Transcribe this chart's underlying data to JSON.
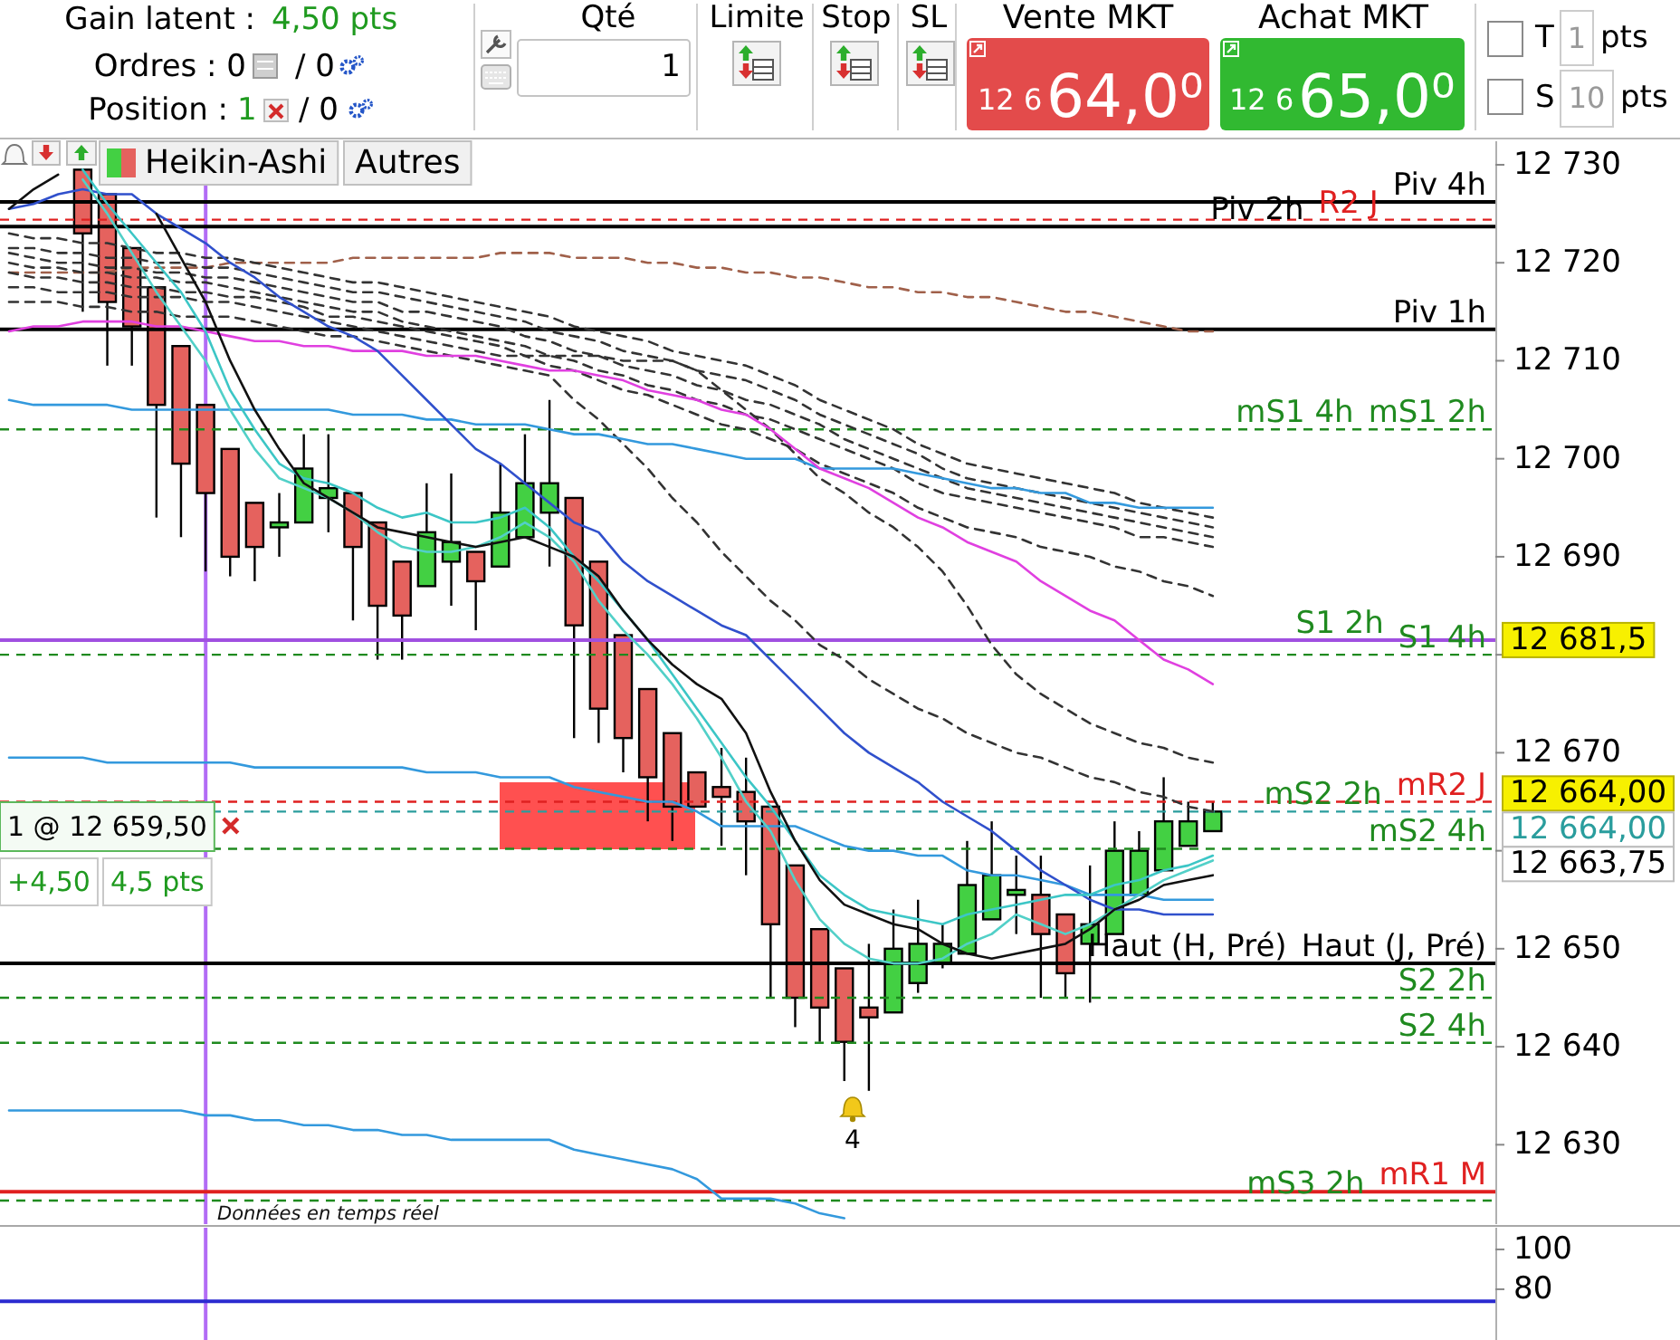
{
  "chart_data": [
    {
      "type": "other",
      "annotations": [
        "Gain latent :",
        "4,50 pts",
        "Ordres : 0",
        "/ 0",
        "Position :",
        "1",
        "/ 0",
        "Qté",
        "1",
        "Limite",
        "Stop",
        "SL",
        "Vente MKT",
        "12 6",
        "64,0⁰",
        "Achat MKT",
        "12 6",
        "65,0⁰",
        "T",
        "1",
        "pts",
        "S",
        "10",
        "pts"
      ]
    },
    {
      "type": "candlestick",
      "categories": [
        null,
        null,
        null,
        null,
        null,
        null,
        null,
        null,
        null,
        null,
        null,
        null,
        null,
        null,
        null,
        null,
        null,
        null,
        null,
        null,
        null,
        null,
        null,
        null,
        null,
        null,
        null,
        null,
        null,
        null,
        null,
        null,
        null,
        null,
        null,
        null,
        null,
        null,
        null,
        null,
        null,
        null,
        null,
        null,
        null,
        null,
        null,
        null,
        null,
        null,
        null,
        null,
        null,
        null,
        null,
        null,
        null,
        null,
        null,
        null,
        null
      ],
      "ohlc": [
        null,
        null,
        null,
        [
          12729.5,
          12729.5,
          12715,
          12723
        ],
        [
          12727,
          12727,
          12709.5,
          12716
        ],
        [
          12721.5,
          12721.5,
          12709.5,
          12713.5
        ],
        [
          12717.5,
          12717.5,
          12694,
          12705.5
        ],
        [
          12711.5,
          12711.5,
          12692,
          12699.5
        ],
        [
          12705.5,
          12705.5,
          12688.5,
          12696.5
        ],
        [
          12701,
          12701,
          12688,
          12690
        ],
        [
          12695.5,
          12695.5,
          12687.5,
          12691
        ],
        [
          12693,
          12696.5,
          12690,
          12693.5
        ],
        [
          12693.5,
          12702.5,
          12693.5,
          12699
        ],
        [
          12696,
          12702.5,
          12692.5,
          12697
        ],
        [
          12696.5,
          12696.5,
          12683.5,
          12691
        ],
        [
          12693.5,
          12693.5,
          12679.5,
          12685
        ],
        [
          12689.5,
          12689.5,
          12679.5,
          12684
        ],
        [
          12687,
          12697.5,
          12687,
          12692.5
        ],
        [
          12689.5,
          12698.5,
          12685,
          12691.5
        ],
        [
          12690.5,
          12690.5,
          12682.5,
          12687.5
        ],
        [
          12689,
          12699.5,
          12689,
          12694.5
        ],
        [
          12692,
          12702.5,
          12692,
          12697.5
        ],
        [
          12694.5,
          12706,
          12689,
          12697.5
        ],
        [
          12696,
          12696,
          12671.5,
          12683
        ],
        [
          12689.5,
          12689.5,
          12671,
          12674.5
        ],
        [
          12682,
          12682,
          12668,
          12671.5
        ],
        [
          12676.5,
          12676.5,
          12663,
          12667.5
        ],
        [
          12672,
          12672,
          12661,
          12664.5
        ],
        [
          12668,
          12668,
          12664.5,
          12664.5
        ],
        [
          12666.5,
          12670.5,
          12660.5,
          12665.5
        ],
        [
          12666,
          12669.5,
          12657.5,
          12663
        ],
        [
          12664.5,
          12664.5,
          12645,
          12652.5
        ],
        [
          12658.5,
          12658.5,
          12642,
          12645
        ],
        [
          12652,
          12652,
          12640.5,
          12644
        ],
        [
          12648,
          12648,
          12636.5,
          12640.5
        ],
        [
          12644,
          12650.5,
          12635.5,
          12643
        ],
        [
          12643.5,
          12654,
          12643.5,
          12650
        ],
        [
          12646.5,
          12655,
          12645.5,
          12650.5
        ],
        [
          12648.5,
          12652.5,
          12648,
          12650.5
        ],
        [
          12649.5,
          12661,
          12649.5,
          12656.5
        ],
        [
          12653,
          12663,
          12653,
          12657.5
        ],
        [
          12655.5,
          12659.5,
          12651.5,
          12656
        ],
        [
          12655.5,
          12659.5,
          12645,
          12651.5
        ],
        [
          12653.5,
          12653.5,
          12645,
          12647.5
        ],
        [
          12650.5,
          12658.5,
          12644.5,
          12652.5
        ],
        [
          12651.5,
          12663,
          12651.5,
          12660
        ],
        [
          12655.5,
          12662,
          12655.5,
          12660
        ],
        [
          12658,
          12667.5,
          12658,
          12663
        ],
        [
          12660.5,
          12665,
          12660.5,
          12663
        ],
        [
          12662,
          12665,
          12662,
          12664
        ],
        null,
        null,
        null,
        null,
        null,
        null,
        null,
        null,
        null,
        null,
        null
      ],
      "colors": [
        null,
        null,
        null,
        "#e5625e",
        "#e5625e",
        "#e5625e",
        "#e5625e",
        "#e5625e",
        "#e5625e",
        "#e5625e",
        "#e5625e",
        "#43d043",
        "#43d043",
        "#43d043",
        "#e5625e",
        "#e5625e",
        "#e5625e",
        "#43d043",
        "#43d043",
        "#e5625e",
        "#43d043",
        "#43d043",
        "#43d043",
        "#e5625e",
        "#e5625e",
        "#e5625e",
        "#e5625e",
        "#e5625e",
        "#e5625e",
        "#e5625e",
        "#e5625e",
        "#e5625e",
        "#e5625e",
        "#e5625e",
        "#e5625e",
        "#e5625e",
        "#43d043",
        "#43d043",
        "#43d043",
        "#43d043",
        "#43d043",
        "#43d043",
        "#e5625e",
        "#e5625e",
        "#43d043",
        "#43d043",
        "#43d043",
        "#43d043",
        "#43d043",
        "#43d043",
        null,
        null,
        null,
        null,
        null,
        null,
        null,
        null,
        null,
        null,
        null
      ],
      "series": [
        {
          "type": "line",
          "color": "#a0604a",
          "line_style": "dashed",
          "values": [
            12719,
            12719,
            12719,
            12719,
            12719,
            12719.5,
            12719.5,
            12719.5,
            12719.5,
            12720,
            12720,
            12720,
            12720,
            12720,
            12720.5,
            12720.5,
            12720.5,
            12720.5,
            12720.5,
            12720.5,
            12721,
            12721,
            12721,
            12720.5,
            12720.5,
            12720.5,
            12720,
            12720,
            12719.5,
            12719.5,
            12719,
            12719,
            12718.5,
            12718.5,
            12718,
            12717.5,
            12717.5,
            12717,
            12717,
            12716.5,
            12716.5,
            12716,
            12715.5,
            12715,
            12715,
            12714.5,
            12714,
            12713.5,
            12713,
            12713,
            null,
            null,
            null,
            null,
            null,
            null,
            null,
            null,
            null,
            null,
            null
          ]
        },
        {
          "type": "line",
          "color": "#333333",
          "line_style": "dashed",
          "values": [
            12723,
            12722.5,
            12722.5,
            12722,
            12722,
            12721.5,
            12721,
            12721,
            12720.5,
            12720.5,
            12720,
            12719.5,
            12719,
            12718.5,
            12718,
            12718,
            12717.5,
            12717,
            12716.5,
            12716,
            12715.5,
            12715,
            12714.5,
            12713.5,
            12713,
            12712.5,
            12712,
            12711,
            12710.5,
            12710,
            12709.5,
            12708.5,
            12707.5,
            12706,
            12705,
            12704,
            12703,
            12701.5,
            12700.5,
            12699.5,
            12699,
            12698.5,
            12698,
            12697.5,
            12697,
            12696.5,
            12695.5,
            12695,
            12694.5,
            12694,
            null,
            null,
            null,
            null,
            null,
            null,
            null,
            null,
            null,
            null,
            null
          ]
        },
        {
          "type": "line",
          "color": "#333333",
          "line_style": "dashed",
          "values": [
            12721.5,
            12721.5,
            12721,
            12721,
            12720.5,
            12720.5,
            12720,
            12720,
            12719.5,
            12719.5,
            12719,
            12718.5,
            12718,
            12717.5,
            12717,
            12717,
            12716.5,
            12716,
            12715.5,
            12715,
            12714.5,
            12714,
            12713,
            12712.5,
            12712,
            12711,
            12710.5,
            12710,
            12709,
            12708.5,
            12708,
            12707,
            12706,
            12704.5,
            12703.5,
            12702.5,
            12701.5,
            12700.5,
            12699,
            12698,
            12697.5,
            12697,
            12696.5,
            12696,
            12695.5,
            12695,
            12694.5,
            12694,
            12693.5,
            12693,
            null,
            null,
            null,
            null,
            null,
            null,
            null,
            null,
            null,
            null,
            null
          ]
        },
        {
          "type": "line",
          "color": "#333333",
          "line_style": "dashed",
          "values": [
            12721,
            12720.5,
            12720,
            12720,
            12719.5,
            12719.5,
            12719,
            12719,
            12718.5,
            12718.5,
            12718,
            12717.5,
            12717,
            12716.5,
            12716,
            12716,
            12715,
            12715,
            12714.5,
            12714,
            12713.5,
            12712.5,
            12712,
            12711,
            12710.5,
            12709.5,
            12709,
            12708.5,
            12707.5,
            12707,
            12706,
            12705.5,
            12704.5,
            12703.5,
            12702,
            12701,
            12700,
            12699,
            12698,
            12697,
            12696.5,
            12696,
            12695.5,
            12695,
            12694.5,
            12694,
            12693.5,
            12693,
            12692.5,
            12692,
            null,
            null,
            null,
            null,
            null,
            null,
            null,
            null,
            null,
            null,
            null
          ]
        },
        {
          "type": "line",
          "color": "#333333",
          "line_style": "dashed",
          "values": [
            12720,
            12719.5,
            12719.5,
            12719,
            12719,
            12718.5,
            12718.5,
            12718,
            12718,
            12717.5,
            12717,
            12716.5,
            12716,
            12715.5,
            12715,
            12715,
            12714,
            12713.5,
            12713,
            12712.5,
            12712,
            12711.5,
            12710.5,
            12710,
            12709,
            12708.5,
            12707.5,
            12707,
            12706,
            12705.5,
            12704.5,
            12704,
            12703,
            12702,
            12701,
            12700,
            12699,
            12697.5,
            12696.5,
            12696,
            12695.5,
            12695,
            12694.5,
            12694,
            12693.5,
            12693,
            12692,
            12692,
            12691.5,
            12691,
            null,
            null,
            null,
            null,
            null,
            null,
            null,
            null,
            null,
            null,
            null
          ]
        },
        {
          "type": "line",
          "color": "#333333",
          "line_style": "dashed",
          "values": [
            12719,
            12718.5,
            12718.5,
            12718,
            12718,
            12717.5,
            12717.5,
            12717,
            12717,
            12716.5,
            12716.5,
            12716,
            12715.5,
            12714.5,
            12714.5,
            12714,
            12713.5,
            12713,
            12712.5,
            12712,
            12711.5,
            12710.5,
            12709.5,
            12709,
            12708,
            12707,
            12706.5,
            12705.5,
            12704.5,
            12703.5,
            12703,
            12702,
            12701,
            12699.5,
            12698.5,
            12697.5,
            12696.5,
            12695,
            12694,
            12693,
            12692.5,
            12692,
            12691,
            12690.5,
            12690,
            12689,
            12688.5,
            12687.5,
            12687,
            12686,
            null,
            null,
            null,
            null,
            null,
            null,
            null,
            null,
            null,
            null,
            null
          ]
        },
        {
          "type": "line",
          "color": "#333333",
          "line_style": "dashed",
          "values": [
            12717.5,
            12717.5,
            12717,
            12717,
            12717,
            12716.5,
            12716.5,
            12716.5,
            12716,
            12716,
            12715.5,
            12715,
            12714.5,
            12714,
            12713.5,
            12713,
            12712.5,
            12712,
            12711.5,
            12711,
            12710.5,
            12710.5,
            12710.5,
            12710.5,
            12710.5,
            12710,
            12710,
            12710,
            12709,
            12707,
            12705,
            12703,
            12700.5,
            12698,
            12696.5,
            12694.5,
            12693,
            12691,
            12688.5,
            12685,
            12681,
            12678,
            12676,
            12674.5,
            12673,
            12672,
            12671,
            12670.5,
            12669.5,
            12669,
            null,
            null,
            null,
            null,
            null,
            null,
            null,
            null,
            null,
            null,
            null
          ]
        },
        {
          "type": "line",
          "color": "#333333",
          "line_style": "dashed",
          "values": [
            12716,
            12716,
            12716,
            12715.5,
            12715.5,
            12715,
            12715,
            12714.5,
            12714.5,
            12714.5,
            12714,
            12713.5,
            12713,
            12712.5,
            12712.5,
            12712,
            12711.5,
            12711,
            12710.5,
            12710,
            12709.5,
            12709,
            12708.5,
            12706,
            12704,
            12701.5,
            12699,
            12696,
            12693.5,
            12690.5,
            12688,
            12685.5,
            12683.5,
            12681,
            12679.5,
            12677.5,
            12676,
            12674.5,
            12673.5,
            12672,
            12671,
            12670,
            12669.5,
            12668.5,
            12667.5,
            12667,
            12666,
            12665.5,
            12664.5,
            12664,
            null,
            null,
            null,
            null,
            null,
            null,
            null,
            null,
            null,
            null,
            null
          ]
        },
        {
          "type": "line",
          "color": "#3399dd",
          "values": [
            12706,
            12705.5,
            12705.5,
            12705.5,
            12705.5,
            12705,
            12705,
            12705,
            12705,
            12705,
            12705,
            12705,
            12705,
            12705,
            12704.5,
            12704.5,
            12704.5,
            12704,
            12704,
            12703.5,
            12703.5,
            12703.5,
            12703,
            12702.5,
            12702.5,
            12702,
            12701.5,
            12701.5,
            12701,
            12700.5,
            12700,
            12700,
            12700,
            12699,
            12699,
            12699,
            12699,
            12698.5,
            12698,
            12697.5,
            12697,
            12697,
            12696.5,
            12696.5,
            12695.5,
            12695.5,
            12695,
            12695,
            12695,
            12695,
            null,
            null,
            null,
            null,
            null,
            null,
            null,
            null,
            null,
            null,
            null
          ]
        },
        {
          "type": "line",
          "color": "#3399dd",
          "values": [
            12669.5,
            12669.5,
            12669.5,
            12669.5,
            12669,
            12669,
            12669,
            12669,
            12669,
            12669,
            12668.5,
            12668.5,
            12668.5,
            12668.5,
            12668.5,
            12668.5,
            12668.5,
            12668,
            12668,
            12668,
            12667.5,
            12667.5,
            12667.5,
            12666.5,
            12666,
            12665.5,
            12665,
            12665,
            12664,
            12662.5,
            12662.5,
            12662.5,
            12662.5,
            12661.5,
            12660.5,
            12660,
            12660,
            12659.5,
            12659.5,
            12658,
            12657.5,
            12657.5,
            12657,
            12656.5,
            12655.5,
            12655.5,
            12655.5,
            12655,
            12655,
            12655,
            null,
            null,
            null,
            null,
            null,
            null,
            null,
            null,
            null,
            null,
            null
          ]
        },
        {
          "type": "line",
          "color": "#3399dd",
          "values": [
            12633.5,
            12633.5,
            12633.5,
            12633.5,
            12633.5,
            12633.5,
            12633.5,
            12633.5,
            12633,
            12633,
            12632.5,
            12632.5,
            12632,
            12632,
            12631.5,
            12631.5,
            12631,
            12631,
            12630.5,
            12630.5,
            12630.5,
            12630.5,
            12630.5,
            12629.5,
            12629,
            12628.5,
            12628,
            12627.5,
            12626.5,
            12624.5,
            12624.5,
            12624.5,
            12624,
            12623,
            12622.5,
            null,
            null,
            null,
            null,
            null,
            null,
            null,
            null,
            null,
            null,
            null,
            null,
            null,
            null,
            null,
            null,
            null,
            null,
            null,
            null,
            null,
            null,
            null,
            null,
            null,
            null
          ]
        },
        {
          "type": "line",
          "color": "#e040e0",
          "values": [
            12713,
            12713.5,
            12713.5,
            12714,
            12714,
            12714,
            12713.5,
            12713.5,
            12713,
            12712.5,
            12712,
            12712,
            12711.5,
            12711.5,
            12711,
            12711,
            12711,
            12710.5,
            12710.5,
            12710.5,
            12710,
            12709.5,
            12709,
            12709,
            12708.5,
            12708,
            12707,
            12706.5,
            12706,
            12705,
            12704.5,
            12703,
            12701,
            12699,
            12698,
            12697,
            12695.5,
            12694,
            12693,
            12691.5,
            12690.5,
            12689.5,
            12687.5,
            12686,
            12684.5,
            12683.5,
            12681.5,
            12679.5,
            12678.5,
            12677,
            null,
            null,
            null,
            null,
            null,
            null,
            null,
            null,
            null,
            null,
            null
          ]
        },
        {
          "type": "line",
          "color": "#3050cc",
          "values": [
            12725.5,
            12726,
            12727,
            12727.5,
            12727,
            12727,
            12725,
            12723.5,
            12722,
            12720,
            12718.5,
            12716.5,
            12715,
            12713.5,
            12712.5,
            12711,
            12708.5,
            12706,
            12703.5,
            12701,
            12699.5,
            12697.5,
            12695.5,
            12693.5,
            12692.5,
            12689.5,
            12687.5,
            12686,
            12684.5,
            12683,
            12682,
            12679.5,
            12677,
            12674.5,
            12672,
            12670,
            12668.5,
            12667,
            12665,
            12663.5,
            12662,
            12660,
            12658,
            12656.5,
            12655,
            12654,
            12654,
            12653.5,
            12653.5,
            12653.5,
            null,
            null,
            null,
            null,
            null,
            null,
            null,
            null,
            null,
            null,
            null
          ]
        },
        {
          "type": "line",
          "color": "#3cc6c6",
          "values": [
            null,
            null,
            null,
            12729.5,
            12726,
            12723,
            12720,
            12717,
            12713,
            12707,
            12703,
            12699.5,
            12698,
            12697.5,
            12696.5,
            12695,
            12694,
            12694.5,
            12693.5,
            12693.5,
            12694,
            12695,
            12693,
            12690,
            12687.5,
            12684.5,
            12681.5,
            12678,
            12674.5,
            12671,
            12667.5,
            12664.5,
            12661,
            12657.5,
            12655.5,
            12654,
            12653.5,
            12653,
            12652.5,
            12653.5,
            12654,
            12654.5,
            12655,
            12655.5,
            12655.5,
            12656.5,
            12657,
            12658,
            12658.5,
            12659.5,
            null,
            null,
            null,
            null,
            null,
            null,
            null,
            null,
            null,
            null,
            null
          ]
        },
        {
          "type": "line",
          "color": "#52d0c8",
          "values": [
            null,
            null,
            null,
            12728.5,
            12725,
            12721,
            12717,
            12713.5,
            12710,
            12705,
            12701,
            12698,
            12697,
            12696,
            12694.5,
            12692.5,
            12691,
            12690.5,
            12690.5,
            12691,
            12692,
            12693.5,
            12692,
            12689.5,
            12685.5,
            12682.5,
            12680,
            12677,
            12673.5,
            12669.5,
            12665,
            12662,
            12657,
            12653,
            12650.5,
            12649,
            12648.5,
            12648.5,
            12649,
            12650.5,
            12651.5,
            12653.5,
            12652.5,
            12651.5,
            12652.5,
            12654,
            12655.5,
            12657,
            12658,
            12659,
            null,
            null,
            null,
            null,
            null,
            null,
            null,
            null,
            null,
            null,
            null
          ]
        },
        {
          "type": "line",
          "color": "#111111",
          "values": [
            12725.5,
            12727.5,
            12729,
            null,
            null,
            null,
            12725,
            12720.5,
            12716,
            12710,
            12705,
            12701,
            12697.5,
            12696,
            12694.5,
            12693,
            12692.5,
            12692,
            12691.5,
            12691,
            12691.5,
            12692,
            12691,
            12690,
            12688,
            12684.5,
            12681.5,
            12679,
            12677,
            12675.5,
            12672,
            12666,
            12661,
            12657,
            12654.5,
            12653.5,
            12652.5,
            12652,
            12650.5,
            12649.5,
            12649,
            12649.5,
            12650,
            12650.5,
            12652,
            12654,
            12655,
            12656.5,
            12657,
            12657.5,
            null,
            null,
            null,
            null,
            null,
            null,
            null,
            null,
            null,
            null,
            null
          ]
        }
      ],
      "ylim": [
        12621.9,
        12732.4
      ],
      "yticks": [
        {
          "value": 12730,
          "label": "12 730"
        },
        {
          "value": 12720,
          "label": "12 720"
        },
        {
          "value": 12710,
          "label": "12 710"
        },
        {
          "value": 12700,
          "label": "12 700"
        },
        {
          "value": 12690,
          "label": "12 690"
        },
        {
          "value": 12680,
          "label": null
        },
        {
          "value": 12670,
          "label": "12 670"
        },
        {
          "value": 12660,
          "label": null
        },
        {
          "value": 12650,
          "label": "12 650"
        },
        {
          "value": 12640,
          "label": "12 640"
        },
        {
          "value": 12630,
          "label": "12 630"
        }
      ],
      "tick_labels": "y",
      "ref_lines": [
        {
          "axis": "y",
          "value": 12726.2,
          "label": "Piv 4h",
          "color": "#000000"
        },
        {
          "axis": "y",
          "value": 12724.4,
          "label": "R2 J",
          "color": "#e02020",
          "line_style": "dashed"
        },
        {
          "axis": "y",
          "value": 12723.7,
          "label": "Piv 2h",
          "color": "#000000"
        },
        {
          "axis": "y",
          "value": 12713.2,
          "label": "Piv 1h",
          "color": "#000000"
        },
        {
          "axis": "y",
          "value": 12703,
          "label": "mS1 2h",
          "color": "#1f8a1f",
          "line_style": "dashed"
        },
        {
          "axis": "y",
          "value": 12681.5,
          "color": "#a050e0"
        },
        {
          "axis": "y",
          "value": 12680,
          "label": "S1 4h",
          "color": "#1f8a1f",
          "line_style": "dashed"
        },
        {
          "axis": "y",
          "value": 12665,
          "label": "mR2 J",
          "color": "#e02020",
          "line_style": "dashed"
        },
        {
          "axis": "y",
          "value": 12664,
          "color": "#2a9d9d",
          "line_style": "dashed"
        },
        {
          "axis": "y",
          "value": 12660.2,
          "label": "mS2 4h",
          "color": "#1f8a1f",
          "line_style": "dashed"
        },
        {
          "axis": "y",
          "value": 12648.5,
          "label": "Haut (J, Pré)",
          "color": "#000000"
        },
        {
          "axis": "y",
          "value": 12645,
          "label": "S2 2h",
          "color": "#1f8a1f",
          "line_style": "dashed"
        },
        {
          "axis": "y",
          "value": 12640.4,
          "label": "S2 4h",
          "color": "#1f8a1f",
          "line_style": "dashed"
        },
        {
          "axis": "y",
          "value": 12625.2,
          "label": "mR1 M",
          "color": "#e02020"
        },
        {
          "axis": "y",
          "value": 12624.3,
          "label": "mS3 2h",
          "color": "#1f8a1f",
          "line_style": "dashed"
        }
      ],
      "annotations": [
        "Heikin-Ashi",
        "Autres",
        "Données en temps réel",
        "1 @ 12 659,50",
        "+4,50",
        "4,5 pts",
        "4",
        "12 681,5",
        "12 664,00",
        "12 664,00",
        "12 663,75",
        "mS1 4h",
        "S1 2h",
        "mS2 2h",
        "Haut (H, Pré)"
      ]
    },
    {
      "type": "line",
      "categories": [
        null,
        null,
        null,
        null,
        null,
        null,
        null,
        null,
        null,
        null,
        null,
        null,
        null,
        null,
        null,
        null,
        null,
        null,
        null,
        null,
        null,
        null,
        null,
        null,
        null,
        null,
        null,
        null,
        null,
        null,
        null,
        null,
        null,
        null,
        null,
        null,
        null,
        null,
        null,
        null,
        null,
        null,
        null,
        null,
        null,
        null,
        null,
        null,
        null,
        null,
        null,
        null,
        null,
        null,
        null,
        null,
        null,
        null,
        null,
        null,
        null
      ],
      "ylim": [
        54.5,
        110.9
      ],
      "yticks": [
        100,
        80
      ],
      "tick_labels": "y",
      "ref_lines": [
        {
          "axis": "y",
          "value": 74,
          "color": "#2b2bd0"
        }
      ]
    }
  ]
}
